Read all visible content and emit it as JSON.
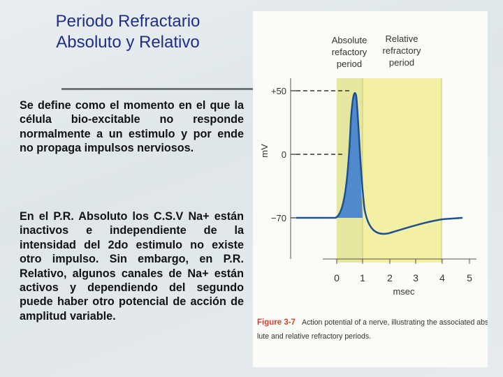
{
  "slide": {
    "title_line1": "Periodo Refractario",
    "title_line2": "Absoluto y Relativo",
    "paragraph1": "Se define como el momento en el que la célula bio-excitable no responde normalmente a un estimulo y por ende no propaga impulsos nerviosos.",
    "paragraph2": "En el P.R. Absoluto los C.S.V Na+ están inactivos e independiente de la intensidad del 2do estimulo no existe otro impulso. Sin embargo, en P.R. Relativo, algunos canales de Na+ están activos y dependiendo del segundo puede haber otro potencial de acción de amplitud variable."
  },
  "figure": {
    "absolute_label": [
      "Absolute",
      "refactory",
      "period"
    ],
    "relative_label": [
      "Relative",
      "refractory",
      "period"
    ],
    "y_axis_label": "mV",
    "y_ticks": [
      "+50",
      "0",
      "−70"
    ],
    "x_ticks": [
      "0",
      "1",
      "2",
      "3",
      "4",
      "5"
    ],
    "x_axis_label": "msec",
    "caption_label": "Figure 3-7",
    "caption_line1": "Action potential of a nerve, illustrating the associated abso-",
    "caption_line2": "lute and relative refractory periods.",
    "colors": {
      "relative_band": "#f3f0a4",
      "absolute_band": "#eceba8",
      "spike_fill": "#3f7ed0",
      "curve": "#1d4f91",
      "caption_label": "#d6402c"
    }
  }
}
